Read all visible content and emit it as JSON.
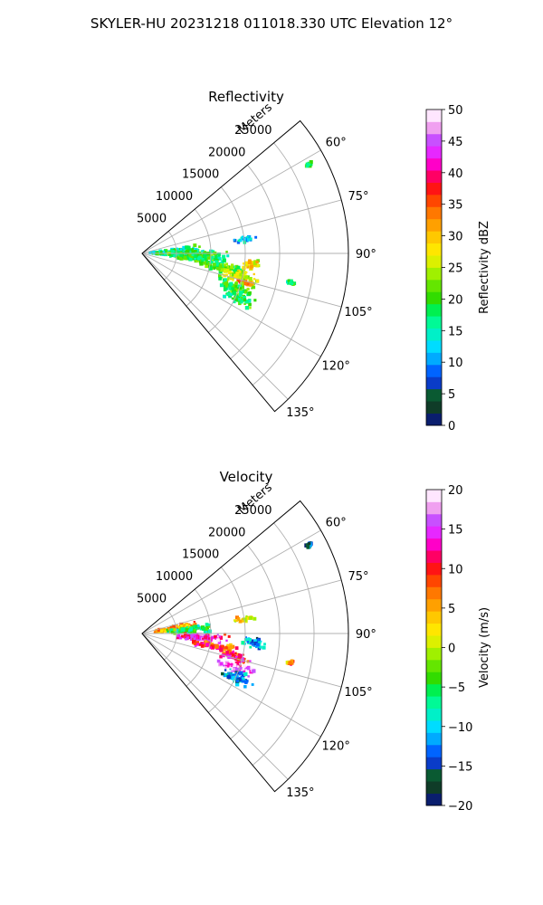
{
  "suptitle": "SKYLER-HU  20231218  011018.330 UTC Elevation 12°",
  "chart_data": [
    {
      "type": "heatmap",
      "subtype": "polar-sector",
      "title": "Reflectivity",
      "range_label": "Meters",
      "range_ticks": [
        5000,
        10000,
        15000,
        20000,
        25000
      ],
      "range_max": 30000,
      "angle_ticks": [
        "60°",
        "75°",
        "90°",
        "105°",
        "120°",
        "135°"
      ],
      "angle_range_deg": [
        50,
        140
      ],
      "grid": true,
      "colorbar": {
        "label": "Reflectivity dBZ",
        "ticks": [
          "0",
          "5",
          "10",
          "15",
          "20",
          "25",
          "30",
          "35",
          "40",
          "45",
          "50"
        ],
        "vmin": 0,
        "vmax": 50,
        "position": "right"
      },
      "echo_cells": [
        {
          "az": 88,
          "r": 5000,
          "sa": 7,
          "sr": 4200,
          "v": 17
        },
        {
          "az": 93,
          "r": 8000,
          "sa": 6,
          "sr": 4500,
          "v": 19
        },
        {
          "az": 100,
          "r": 12000,
          "sa": 4,
          "sr": 3500,
          "v": 20
        },
        {
          "az": 104,
          "r": 14500,
          "sa": 4,
          "sr": 3000,
          "v": 26
        },
        {
          "az": 106,
          "r": 15500,
          "sa": 1.5,
          "sr": 1500,
          "v": 36
        },
        {
          "az": 110,
          "r": 14500,
          "sa": 4,
          "sr": 3000,
          "v": 20
        },
        {
          "az": 115,
          "r": 15500,
          "sa": 4,
          "sr": 2500,
          "v": 19
        },
        {
          "az": 96,
          "r": 16000,
          "sa": 3,
          "sr": 1500,
          "v": 28
        },
        {
          "az": 82,
          "r": 15000,
          "sa": 2,
          "sr": 1800,
          "v": 12
        },
        {
          "az": 101,
          "r": 22000,
          "sa": 1,
          "sr": 600,
          "v": 18
        },
        {
          "az": 62,
          "r": 27500,
          "sa": 0.6,
          "sr": 500,
          "v": 18
        }
      ]
    },
    {
      "type": "heatmap",
      "subtype": "polar-sector",
      "title": "Velocity",
      "range_label": "Meters",
      "range_ticks": [
        5000,
        10000,
        15000,
        20000,
        25000
      ],
      "range_max": 30000,
      "angle_ticks": [
        "60°",
        "75°",
        "90°",
        "105°",
        "120°",
        "135°"
      ],
      "angle_range_deg": [
        50,
        140
      ],
      "grid": true,
      "colorbar": {
        "label": "Velocity (m/s)",
        "ticks": [
          "−20",
          "−15",
          "−10",
          "−5",
          "0",
          "5",
          "10",
          "15",
          "20"
        ],
        "vmin": -20,
        "vmax": 20,
        "position": "right"
      },
      "echo_cells": [
        {
          "az": 82,
          "r": 5000,
          "sa": 6,
          "sr": 3500,
          "v": 5
        },
        {
          "az": 86,
          "r": 7000,
          "sa": 5,
          "sr": 4000,
          "v": -6
        },
        {
          "az": 94,
          "r": 8500,
          "sa": 4,
          "sr": 4500,
          "v": 14
        },
        {
          "az": 100,
          "r": 11000,
          "sa": 3,
          "sr": 4000,
          "v": 9
        },
        {
          "az": 104,
          "r": 14000,
          "sa": 3,
          "sr": 2500,
          "v": 11
        },
        {
          "az": 110,
          "r": 14500,
          "sa": 3,
          "sr": 3000,
          "v": 16
        },
        {
          "az": 115,
          "r": 15500,
          "sa": 4,
          "sr": 2500,
          "v": -12
        },
        {
          "az": 95,
          "r": 16500,
          "sa": 3,
          "sr": 2000,
          "v": -12
        },
        {
          "az": 82,
          "r": 15000,
          "sa": 2,
          "sr": 1800,
          "v": 2
        },
        {
          "az": 101,
          "r": 22000,
          "sa": 1,
          "sr": 600,
          "v": 6
        },
        {
          "az": 62,
          "r": 27500,
          "sa": 0.6,
          "sr": 500,
          "v": -15
        }
      ]
    }
  ],
  "colors": {
    "grid": "#b0b0b0",
    "reflectivity_scale": [
      "#0a1e6e",
      "#0f3c28",
      "#0a5a32",
      "#0a3cc8",
      "#0064ff",
      "#00aaff",
      "#00dcff",
      "#00f0c8",
      "#00fa96",
      "#00f050",
      "#32dc00",
      "#64e600",
      "#a0f000",
      "#dcf000",
      "#ffe600",
      "#ffc800",
      "#ffa000",
      "#ff7800",
      "#ff4600",
      "#ff1414",
      "#ff0064",
      "#ff00c8",
      "#e628ff",
      "#c850ff",
      "#f0a0f0",
      "#ffe6ff"
    ],
    "velocity_scale": [
      "#0a1e6e",
      "#0f3c28",
      "#0a5a32",
      "#0a3cc8",
      "#0064ff",
      "#00aaff",
      "#00dcff",
      "#00f0c8",
      "#00fa96",
      "#00f050",
      "#32dc00",
      "#64e600",
      "#a0f000",
      "#dcf000",
      "#ffe600",
      "#ffc800",
      "#ffa000",
      "#ff7800",
      "#ff4600",
      "#ff1414",
      "#ff0064",
      "#ff00c8",
      "#e628ff",
      "#c850ff",
      "#f0a0f0",
      "#ffe6ff"
    ]
  }
}
